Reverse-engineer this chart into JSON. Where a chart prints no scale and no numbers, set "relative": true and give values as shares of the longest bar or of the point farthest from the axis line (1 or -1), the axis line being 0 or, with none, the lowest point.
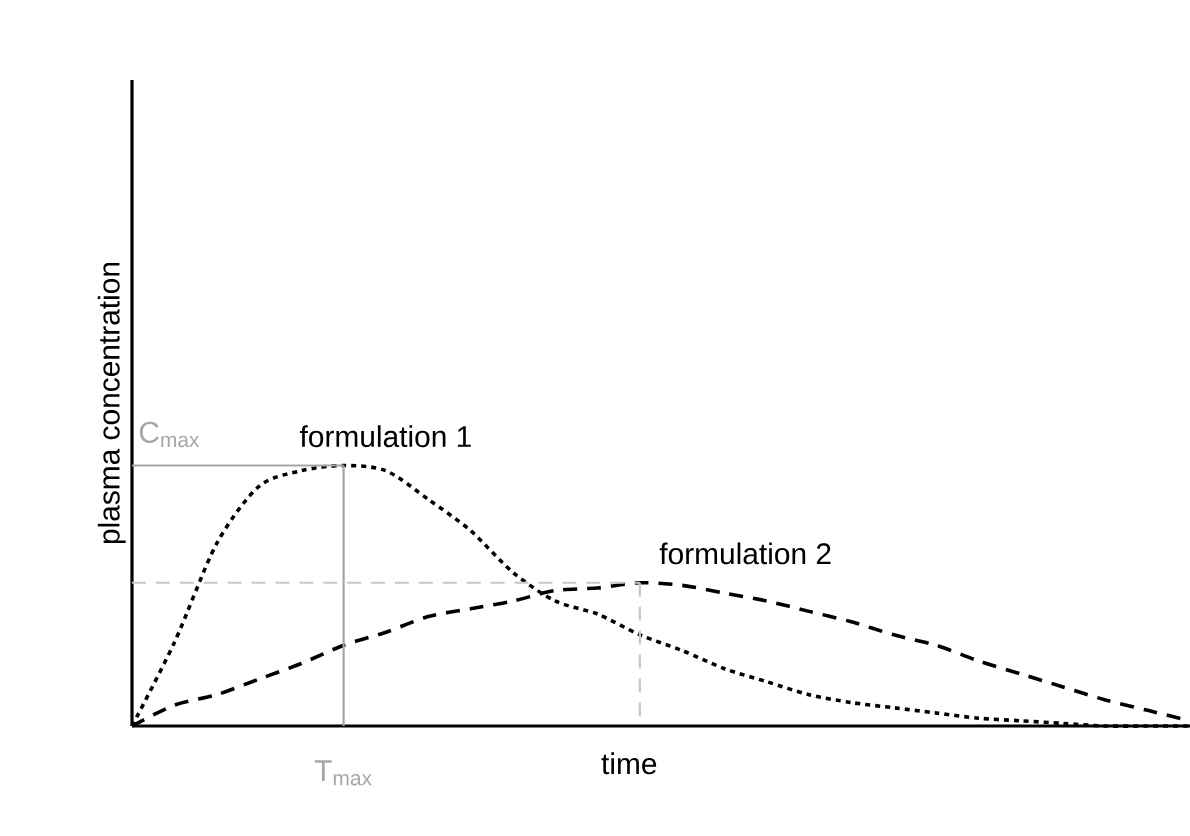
{
  "chart_data": {
    "type": "line",
    "relative": true,
    "xlabel": "time",
    "ylabel": "plasma concentration",
    "categories": [
      null,
      null,
      null,
      null,
      null,
      null,
      null,
      null,
      null,
      null,
      null,
      null,
      null,
      null,
      null,
      null,
      null,
      null,
      null,
      null,
      null,
      null,
      null,
      null,
      null,
      null
    ],
    "series": [
      {
        "name": "formulation 1",
        "color": "#000000",
        "line_style": "dotted",
        "values": [
          0,
          0.32,
          0.7,
          0.92,
          0.98,
          1,
          0.98,
          0.87,
          0.75,
          0.59,
          0.48,
          0.43,
          0.35,
          0.29,
          0.22,
          0.17,
          0.12,
          0.09,
          0.07,
          0.05,
          0.03,
          0.02,
          0.01,
          0,
          0,
          0
        ]
      },
      {
        "name": "formulation 2",
        "color": "#000000",
        "line_style": "dashed",
        "values": [
          0,
          0.08,
          0.12,
          0.18,
          0.24,
          0.31,
          0.36,
          0.42,
          0.45,
          0.48,
          0.52,
          0.53,
          0.55,
          0.54,
          0.51,
          0.48,
          0.44,
          0.4,
          0.35,
          0.31,
          0.25,
          0.2,
          0.15,
          0.1,
          0.06,
          0.02
        ]
      },
      {
        "color": "#a6a6a6",
        "line_style": "solid",
        "values": [
          1,
          1,
          1,
          1,
          1,
          1,
          null,
          null,
          null,
          null,
          null,
          null,
          null,
          null,
          null,
          null,
          null,
          null,
          null,
          null,
          null,
          null,
          null,
          null,
          null,
          null
        ]
      },
      {
        "color": "#c8c8c8",
        "line_style": "dashed",
        "values": [
          0.55,
          0.55,
          0.55,
          0.55,
          0.55,
          0.55,
          0.55,
          0.55,
          0.55,
          0.55,
          0.55,
          0.55,
          0.55,
          null,
          null,
          null,
          null,
          null,
          null,
          null,
          null,
          null,
          null,
          null,
          null,
          null
        ]
      }
    ],
    "annotations": [
      "C$_{max}$",
      "T$_{max}$"
    ]
  }
}
